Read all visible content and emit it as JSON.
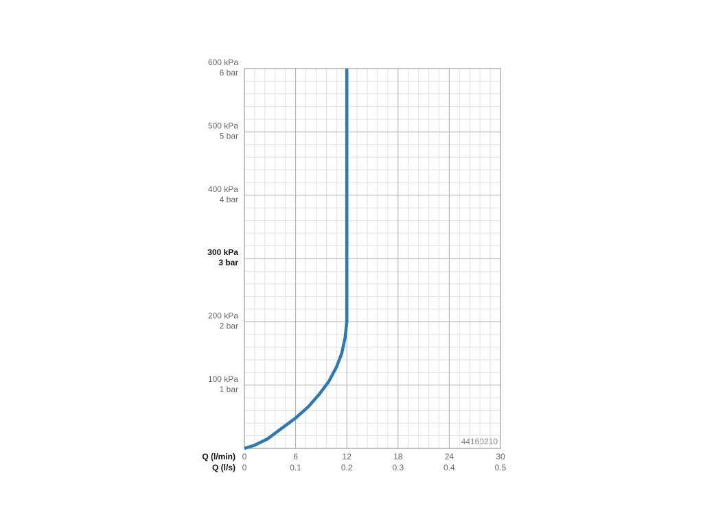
{
  "chart_data": {
    "type": "line",
    "xlabel": "Q (l/min)",
    "x2label": "Q (l/s)",
    "xlim": [
      0,
      30
    ],
    "xticks": [
      0,
      6,
      12,
      18,
      24,
      30
    ],
    "x2lim": [
      0,
      0.5
    ],
    "x2ticks": [
      0,
      0.1,
      0.2,
      0.3,
      0.4,
      0.5
    ],
    "ylim": [
      0,
      600
    ],
    "yticks": [
      {
        "value": 100,
        "label": "100 kPa"
      },
      {
        "value": 200,
        "label": "200 kPa"
      },
      {
        "value": 300,
        "label": "300 kPa"
      },
      {
        "value": 400,
        "label": "400 kPa"
      },
      {
        "value": 500,
        "label": "500 kPa"
      },
      {
        "value": 600,
        "label": "600 kPa"
      }
    ],
    "y2lim": [
      0,
      6
    ],
    "y2ticks": [
      {
        "value": 1,
        "label": "1 bar"
      },
      {
        "value": 2,
        "label": "2 bar"
      },
      {
        "value": 3,
        "label": "3 bar"
      },
      {
        "value": 4,
        "label": "4 bar"
      },
      {
        "value": 5,
        "label": "5 bar"
      },
      {
        "value": 6,
        "label": "6 bar"
      }
    ],
    "emphasized_ytick": 300,
    "grid": true,
    "minor_divisions": 5,
    "annotation": "44160210",
    "series": [
      {
        "color": "#2a7ab8",
        "x": [
          0,
          1.2,
          2.7,
          4.2,
          6,
          7.5,
          8.8,
          9.9,
          10.8,
          11.4,
          11.8,
          12,
          12
        ],
        "values": [
          0,
          5,
          15,
          30,
          48,
          66,
          86,
          106,
          129,
          150,
          175,
          200,
          600
        ]
      }
    ]
  }
}
